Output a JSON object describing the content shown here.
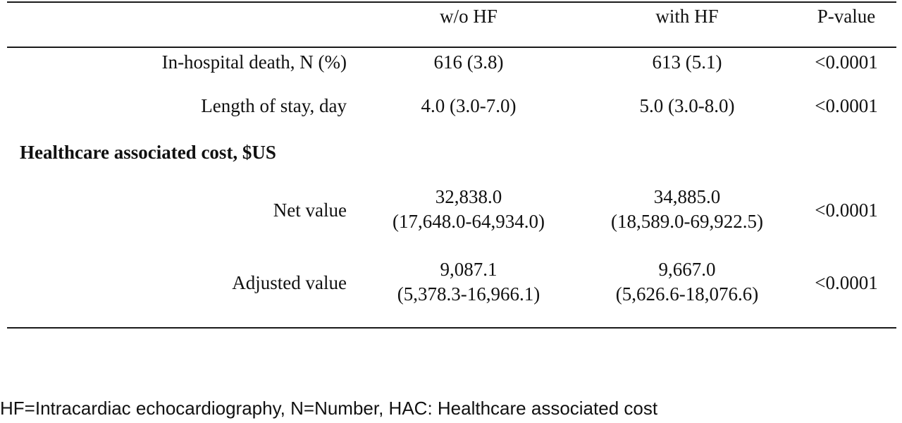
{
  "table": {
    "headers": {
      "label": "",
      "without_hf": "w/o HF",
      "with_hf": "with HF",
      "p_value": "P-value"
    },
    "rows": [
      {
        "label": "In-hospital death, N (%)",
        "without_hf": [
          "616 (3.8)"
        ],
        "with_hf": [
          "613 (5.1)"
        ],
        "p_value": "<0.0001"
      },
      {
        "label": "Length of stay, day",
        "without_hf": [
          "4.0 (3.0-7.0)"
        ],
        "with_hf": [
          "5.0 (3.0-8.0)"
        ],
        "p_value": "<0.0001"
      },
      {
        "section_header": "Healthcare associated cost, $US"
      },
      {
        "label": "Net value",
        "without_hf": [
          "32,838.0",
          "(17,648.0-64,934.0)"
        ],
        "with_hf": [
          "34,885.0",
          "(18,589.0-69,922.5)"
        ],
        "p_value": "<0.0001"
      },
      {
        "label": "Adjusted value",
        "without_hf": [
          "9,087.1",
          "(5,378.3-16,966.1)"
        ],
        "with_hf": [
          "9,667.0",
          "(5,626.6-18,076.6)"
        ],
        "p_value": "<0.0001"
      }
    ]
  },
  "footnote": "HF=Intracardiac echocardiography, N=Number, HAC: Healthcare associated cost"
}
